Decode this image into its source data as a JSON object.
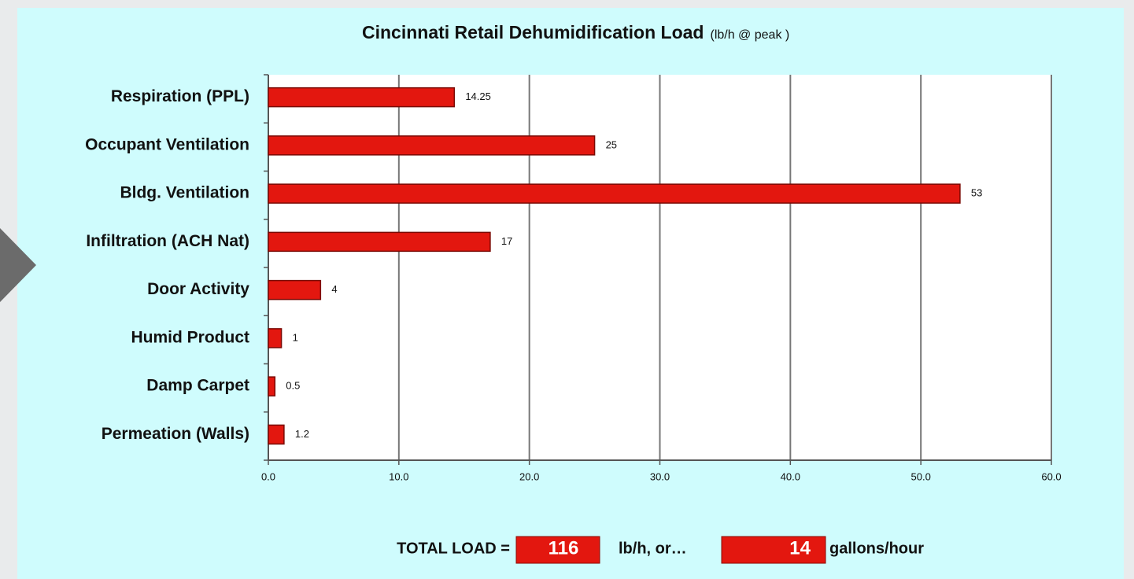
{
  "chart_data": {
    "type": "barh",
    "title": "Cincinnati Retail Dehumidification Load",
    "subtitle": "(lb/h @ peak )",
    "categories": [
      "Respiration (PPL)",
      "Occupant Ventilation",
      "Bldg. Ventilation",
      "Infiltration (ACH Nat)",
      "Door Activity",
      "Humid Product",
      "Damp Carpet",
      "Permeation (Walls)"
    ],
    "values": [
      14.25,
      25,
      53,
      17,
      4,
      1,
      0.5,
      1.2
    ],
    "color": "#e3170f",
    "xlim": [
      0,
      60
    ],
    "xticks": [
      {
        "value": 0,
        "label": "0.0"
      },
      {
        "value": 10,
        "label": "10.0"
      },
      {
        "value": 20,
        "label": "20.0"
      },
      {
        "value": 30,
        "label": "30.0"
      },
      {
        "value": 40,
        "label": "40.0"
      },
      {
        "value": 50,
        "label": "50.0"
      },
      {
        "value": 60,
        "label": "60.0"
      }
    ],
    "grid": true,
    "total": {
      "label": "TOTAL LOAD =",
      "load": 116,
      "load_unit": "lb/h, or…",
      "gallons": 14,
      "gallons_unit": "gallons/hour"
    }
  }
}
